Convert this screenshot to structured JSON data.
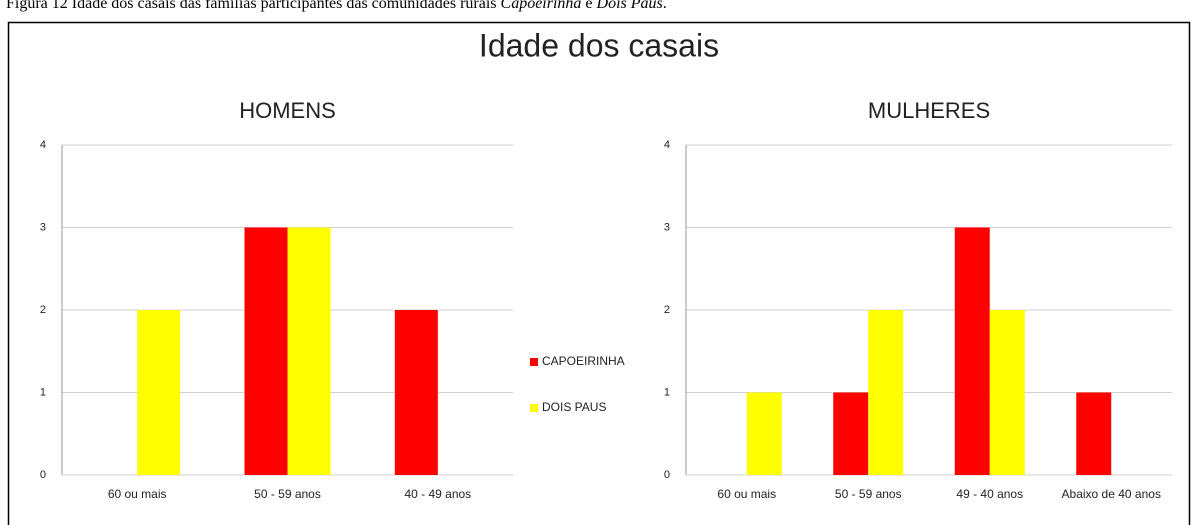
{
  "caption": {
    "text": "Figura 12 Idade dos casais das famílias participantes das comunidades rurais ",
    "place1": "Capoeirinha",
    "joiner": " e ",
    "place2": "Dois Paus",
    "end": "."
  },
  "title": "Idade dos casais",
  "chart_data": [
    {
      "type": "bar",
      "title": "HOMENS",
      "categories": [
        "60 ou mais",
        "50 - 59 anos",
        "40 - 49 anos"
      ],
      "series": [
        {
          "name": "CAPOEIRINHA",
          "color": "#ff0000",
          "values": [
            0,
            3,
            2
          ]
        },
        {
          "name": "DOIS PAUS",
          "color": "#ffff00",
          "values": [
            2,
            3,
            0
          ]
        }
      ],
      "ylim": [
        0,
        4
      ],
      "yticks": [
        0,
        1,
        2,
        3,
        4
      ],
      "grid": true,
      "legend": "right"
    },
    {
      "type": "bar",
      "title": "MULHERES",
      "categories": [
        "60 ou mais",
        "50 - 59 anos",
        "49 - 40 anos",
        "Abaixo de 40 anos"
      ],
      "series": [
        {
          "color": "#ff0000",
          "values": [
            0,
            1,
            3,
            1
          ]
        },
        {
          "color": "#ffff00",
          "values": [
            1,
            2,
            2,
            0
          ]
        }
      ],
      "ylim": [
        0,
        4
      ],
      "yticks": [
        0,
        1,
        2,
        3,
        4
      ],
      "grid": true
    }
  ]
}
